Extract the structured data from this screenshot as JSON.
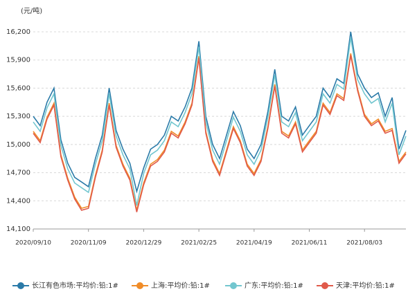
{
  "chart_data": {
    "type": "line",
    "y_unit": "(元/吨)",
    "categories": [
      "2020/09/10",
      null,
      null,
      null,
      null,
      null,
      null,
      null,
      "2020/11/09",
      null,
      null,
      null,
      null,
      null,
      null,
      null,
      "2020/12/29",
      null,
      null,
      null,
      null,
      null,
      null,
      null,
      "2021/02/25",
      null,
      null,
      null,
      null,
      null,
      null,
      null,
      "2021/04/19",
      null,
      null,
      null,
      null,
      null,
      null,
      null,
      "2021/06/11",
      null,
      null,
      null,
      null,
      null,
      null,
      null,
      "2021/08/03",
      null,
      null,
      null,
      null,
      null,
      null
    ],
    "series": [
      {
        "name": "长江有色市场:平均价:铅:1#",
        "color": "#2a7aa8",
        "values": [
          15300,
          15200,
          15450,
          15600,
          15050,
          14800,
          14650,
          14600,
          14550,
          14850,
          15100,
          15600,
          15150,
          14950,
          14800,
          14500,
          14750,
          14950,
          15000,
          15100,
          15300,
          15250,
          15400,
          15600,
          16100,
          15300,
          15000,
          14850,
          15100,
          15350,
          15200,
          14950,
          14850,
          15000,
          15350,
          15800,
          15300,
          15250,
          15400,
          15100,
          15200,
          15300,
          15600,
          15500,
          15700,
          15650,
          16200,
          15750,
          15600,
          15500,
          15550,
          15300,
          15500,
          14950,
          15150
        ]
      },
      {
        "name": "上海:平均价:铅:1#",
        "color": "#f08c28",
        "values": [
          15140,
          15040,
          15290,
          15440,
          14890,
          14640,
          14440,
          14320,
          14340,
          14670,
          14940,
          15440,
          14990,
          14790,
          14640,
          14300,
          14590,
          14790,
          14840,
          14940,
          15140,
          15090,
          15240,
          15440,
          15940,
          15140,
          14840,
          14690,
          14940,
          15190,
          15040,
          14790,
          14690,
          14840,
          15190,
          15640,
          15140,
          15090,
          15240,
          14940,
          15040,
          15140,
          15440,
          15340,
          15540,
          15490,
          15970,
          15590,
          15320,
          15220,
          15270,
          15140,
          15170,
          14820,
          14920
        ]
      },
      {
        "name": "广东:平均价:铅:1#",
        "color": "#72c6cf",
        "values": [
          15240,
          15140,
          15390,
          15540,
          14990,
          14740,
          14590,
          14540,
          14490,
          14790,
          15040,
          15540,
          15090,
          14890,
          14740,
          14350,
          14690,
          14890,
          14940,
          15040,
          15240,
          15190,
          15340,
          15540,
          16040,
          15240,
          14940,
          14790,
          15040,
          15290,
          15140,
          14890,
          14790,
          14940,
          15290,
          15740,
          15240,
          15190,
          15340,
          15040,
          15140,
          15240,
          15540,
          15440,
          15640,
          15590,
          16140,
          15690,
          15540,
          15440,
          15490,
          15240,
          15440,
          14890,
          15090
        ]
      },
      {
        "name": "天津:平均价:铅:1#",
        "color": "#e05a4a",
        "values": [
          15120,
          15020,
          15270,
          15420,
          14870,
          14620,
          14420,
          14300,
          14320,
          14650,
          14920,
          15420,
          14970,
          14770,
          14620,
          14280,
          14570,
          14770,
          14820,
          14920,
          15120,
          15070,
          15220,
          15420,
          15920,
          15120,
          14820,
          14670,
          14920,
          15170,
          15020,
          14770,
          14670,
          14820,
          15170,
          15620,
          15120,
          15070,
          15220,
          14920,
          15020,
          15120,
          15420,
          15320,
          15520,
          15470,
          15950,
          15570,
          15300,
          15200,
          15250,
          15120,
          15150,
          14800,
          14900
        ]
      }
    ],
    "ylim": [
      14100,
      16200
    ],
    "yticks": [
      {
        "value": 14100,
        "label": "14,100"
      },
      {
        "value": 14400,
        "label": "14,400"
      },
      {
        "value": 14700,
        "label": "14,700"
      },
      {
        "value": 15000,
        "label": "15,000"
      },
      {
        "value": 15300,
        "label": "15,300"
      },
      {
        "value": 15600,
        "label": "15,600"
      },
      {
        "value": 15900,
        "label": "15,900"
      },
      {
        "value": 16200,
        "label": "16,200"
      }
    ],
    "grid": true
  }
}
